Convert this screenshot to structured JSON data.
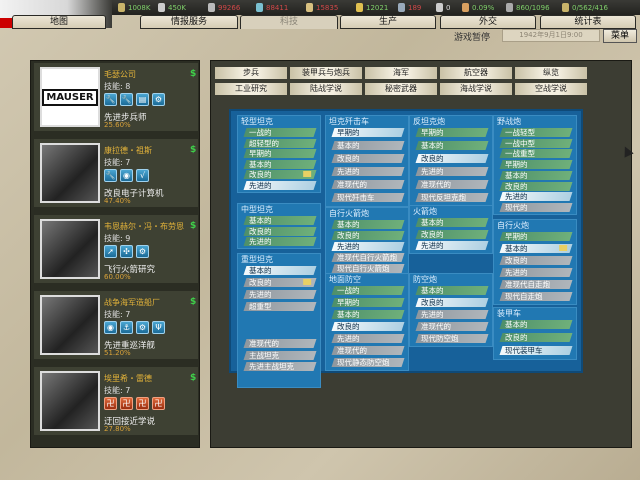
{
  "resources": [
    {
      "icon": "energy-icon",
      "value": "1008K",
      "color": "#7fcf6a"
    },
    {
      "icon": "metal-icon",
      "value": "450K",
      "color": "#7fcf6a"
    },
    {
      "icon": "rare-materials-icon",
      "value": "99266",
      "color": "#d04848"
    },
    {
      "icon": "oil-icon",
      "value": "88411",
      "color": "#d04848"
    },
    {
      "icon": "supplies-icon",
      "value": "15835",
      "color": "#d04848"
    },
    {
      "icon": "money-icon",
      "value": "12021",
      "color": "#7fcf6a"
    },
    {
      "icon": "manpower-icon",
      "value": "189",
      "color": "#d04848"
    },
    {
      "icon": "transport-icon",
      "value": "0",
      "color": "#dddddd"
    },
    {
      "icon": "dissent-icon",
      "value": "0.09%",
      "color": "#7fcf6a"
    },
    {
      "icon": "convoy-icon",
      "value": "860/1096",
      "color": "#7fcf6a"
    },
    {
      "icon": "nukes-icon",
      "value": "0/562/416",
      "color": "#7fcf6a"
    }
  ],
  "tabs": [
    "地图",
    "情报服务",
    "科技",
    "生产",
    "外交",
    "统计表"
  ],
  "active_tab": "科技",
  "status": {
    "pause": "游戏暂停",
    "date": "1942年9月1日9:00",
    "menu": "菜单"
  },
  "teams": [
    {
      "name": "毛瑟公司",
      "skill": "技能: 8",
      "project": "先进步兵师",
      "progress": "25.60%",
      "logo": "MAUSER",
      "icons": [
        "wrench",
        "wrench",
        "book",
        "gear"
      ],
      "red": false
    },
    {
      "name": "康拉德・祖斯",
      "skill": "技能: 7",
      "project": "改良电子计算机",
      "progress": "47.40%",
      "icons": [
        "wrench",
        "bulb",
        "sqrt"
      ],
      "red": false
    },
    {
      "name": "韦恩赫尔・冯・布劳恩",
      "skill": "技能: 9",
      "project": "飞行火箭研究",
      "progress": "60.00%",
      "icons": [
        "rocket",
        "propeller",
        "gear"
      ],
      "red": false
    },
    {
      "name": "战争海军造船厂",
      "skill": "技能: 7",
      "project": "先进重巡洋舰",
      "progress": "51.20%",
      "icons": [
        "bulb",
        "anchor",
        "gear",
        "radar"
      ],
      "red": false
    },
    {
      "name": "埃里希・雷德",
      "skill": "技能: 7",
      "project": "迂回接近学说",
      "progress": "27.80%",
      "icons": [
        "doctrine",
        "doctrine",
        "doctrine",
        "doctrine"
      ],
      "red": true
    }
  ],
  "category_tabs": [
    [
      "步兵",
      "装甲兵与炮兵",
      "海军",
      "航空器",
      "纵览"
    ],
    [
      "工业研究",
      "陆战学说",
      "秘密武器",
      "海战学说",
      "空战学说"
    ]
  ],
  "tree": [
    {
      "title": "轻型坦克",
      "items": [
        [
          "一战的",
          "done"
        ],
        [
          "超轻型的",
          "done"
        ],
        [
          "早期的",
          "done"
        ],
        [
          "基本的",
          "done"
        ],
        [
          "改良的",
          "done",
          1
        ],
        [
          "先进的",
          "avail"
        ]
      ]
    },
    {
      "title": "中型坦克",
      "items": [
        [
          "基本的",
          "done"
        ],
        [
          "改良的",
          "done"
        ],
        [
          "先进的",
          "done"
        ]
      ]
    },
    {
      "title": "重型坦克",
      "items": [
        [
          "基本的",
          "avail"
        ],
        [
          "改良的",
          "locked",
          1
        ],
        [
          "先进的",
          "locked"
        ],
        [
          "超重型",
          "locked"
        ],
        [
          "准现代的",
          "locked"
        ],
        [
          "主战坦克",
          "locked"
        ],
        [
          "先进主战坦克",
          "locked"
        ]
      ]
    },
    {
      "title": "坦克歼击车",
      "items": [
        [
          "早期的",
          "avail"
        ],
        [
          "基本的",
          "locked"
        ],
        [
          "改良的",
          "locked"
        ],
        [
          "先进的",
          "locked"
        ],
        [
          "准现代的",
          "locked"
        ],
        [
          "现代歼击车",
          "locked"
        ]
      ]
    },
    {
      "title": "自行火箭炮",
      "items": [
        [
          "基本的",
          "done"
        ],
        [
          "改良的",
          "done"
        ],
        [
          "先进的",
          "avail"
        ],
        [
          "准现代自行火箭炮",
          "locked"
        ],
        [
          "现代自行火箭炮",
          "locked"
        ]
      ]
    },
    {
      "title": "地面防空",
      "items": [
        [
          "一战的",
          "done"
        ],
        [
          "早期的",
          "done"
        ],
        [
          "基本的",
          "done"
        ],
        [
          "改良的",
          "avail"
        ],
        [
          "先进的",
          "locked"
        ],
        [
          "准现代的",
          "locked"
        ],
        [
          "现代静态防空炮",
          "locked"
        ]
      ]
    },
    {
      "title": "反坦克炮",
      "items": [
        [
          "早期的",
          "done"
        ],
        [
          "基本的",
          "done"
        ],
        [
          "改良的",
          "avail"
        ],
        [
          "先进的",
          "locked"
        ],
        [
          "准现代的",
          "locked"
        ],
        [
          "现代反坦克炮",
          "locked"
        ]
      ]
    },
    {
      "title": "火箭炮",
      "items": [
        [
          "基本的",
          "done"
        ],
        [
          "改良的",
          "done"
        ],
        [
          "先进的",
          "avail"
        ]
      ]
    },
    {
      "title": "防空炮",
      "items": [
        [
          "基本的",
          "done"
        ],
        [
          "改良的",
          "avail"
        ],
        [
          "先进的",
          "locked"
        ],
        [
          "准现代的",
          "locked"
        ],
        [
          "现代防空炮",
          "locked"
        ]
      ]
    },
    {
      "title": "野战炮",
      "items": [
        [
          "一战轻型",
          "done"
        ],
        [
          "一战中型",
          "done"
        ],
        [
          "一战重型",
          "done"
        ],
        [
          "早期的",
          "done"
        ],
        [
          "基本的",
          "done"
        ],
        [
          "改良的",
          "done"
        ],
        [
          "先进的",
          "avail"
        ],
        [
          "现代的",
          "locked"
        ]
      ]
    },
    {
      "title": "自行火炮",
      "items": [
        [
          "早期的",
          "done"
        ],
        [
          "基本的",
          "avail",
          1
        ],
        [
          "改良的",
          "locked"
        ],
        [
          "先进的",
          "locked"
        ],
        [
          "准现代自走炮",
          "locked"
        ],
        [
          "现代自走炮",
          "locked"
        ]
      ]
    },
    {
      "title": "装甲车",
      "items": [
        [
          "基本的",
          "done"
        ],
        [
          "改良的",
          "done"
        ],
        [
          "现代装甲车",
          "avail"
        ]
      ]
    }
  ],
  "colors": {
    "researched": "#5f9f72",
    "available": "#e4f0f6",
    "locked": "#a0a7ad",
    "tree_bg": "#17619a",
    "team_name": "#e3b33a"
  }
}
